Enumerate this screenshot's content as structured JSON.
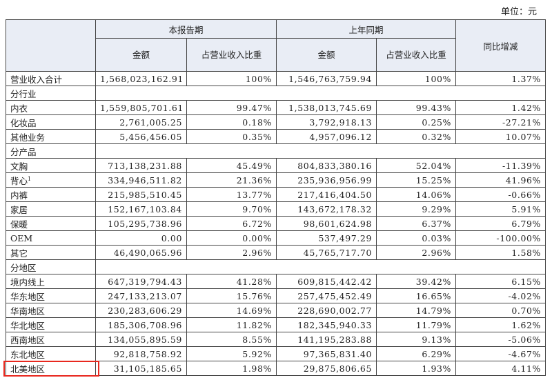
{
  "unit": "单位：元",
  "header": {
    "groups": [
      "本报告期",
      "上年同期",
      "同比增减"
    ],
    "columns": [
      "金额",
      "占营业收入比重",
      "金额",
      "占营业收入比重"
    ]
  },
  "table": {
    "rows": [
      {
        "label": "营业收入合计",
        "values": [
          "1,568,023,162.91",
          "100%",
          "1,546,763,759.94",
          "100%",
          "1.37%"
        ]
      },
      {
        "section": "分行业"
      },
      {
        "label": "内衣",
        "values": [
          "1,559,805,701.61",
          "99.47%",
          "1,538,013,745.69",
          "99.43%",
          "1.42%"
        ]
      },
      {
        "label": "化妆品",
        "values": [
          "2,761,005.25",
          "0.18%",
          "3,792,918.13",
          "0.25%",
          "-27.21%"
        ]
      },
      {
        "label": "其他业务",
        "values": [
          "5,456,456.05",
          "0.35%",
          "4,957,096.12",
          "0.32%",
          "10.07%"
        ]
      },
      {
        "section": "分产品"
      },
      {
        "label": "文胸",
        "values": [
          "713,138,231.88",
          "45.49%",
          "804,833,380.16",
          "52.04%",
          "-11.39%"
        ]
      },
      {
        "label": "背心",
        "note": "1",
        "values": [
          "334,946,511.82",
          "21.36%",
          "235,936,956.99",
          "15.25%",
          "41.96%"
        ]
      },
      {
        "label": "内裤",
        "values": [
          "215,985,510.45",
          "13.77%",
          "217,416,404.50",
          "14.06%",
          "-0.66%"
        ]
      },
      {
        "label": "家居",
        "values": [
          "152,167,103.84",
          "9.70%",
          "143,672,178.32",
          "9.29%",
          "5.91%"
        ]
      },
      {
        "label": "保暖",
        "values": [
          "105,295,738.96",
          "6.72%",
          "98,601,624.98",
          "6.37%",
          "6.79%"
        ]
      },
      {
        "label": "OEM",
        "values": [
          "0.00",
          "0.00%",
          "537,497.29",
          "0.03%",
          "-100.00%"
        ]
      },
      {
        "label": "其它",
        "values": [
          "46,490,065.96",
          "2.96%",
          "45,765,717.70",
          "2.96%",
          "1.58%"
        ]
      },
      {
        "section": "分地区"
      },
      {
        "label": "境内线上",
        "values": [
          "647,319,794.43",
          "41.28%",
          "609,815,442.42",
          "39.42%",
          "6.15%"
        ]
      },
      {
        "label": "华东地区",
        "values": [
          "247,133,213.07",
          "15.76%",
          "257,475,452.49",
          "16.65%",
          "-4.02%"
        ]
      },
      {
        "label": "华南地区",
        "values": [
          "230,283,606.29",
          "14.69%",
          "228,690,002.77",
          "14.79%",
          "0.70%"
        ]
      },
      {
        "label": "华北地区",
        "values": [
          "185,306,708.96",
          "11.82%",
          "182,345,940.33",
          "11.79%",
          "1.62%"
        ]
      },
      {
        "label": "西南地区",
        "values": [
          "134,055,895.59",
          "8.55%",
          "141,195,283.88",
          "9.13%",
          "-5.06%"
        ]
      },
      {
        "label": "东北地区",
        "values": [
          "92,818,758.92",
          "5.92%",
          "97,365,831.40",
          "6.29%",
          "-4.67%"
        ]
      },
      {
        "label": "北美地区",
        "values": [
          "31,105,185.65",
          "1.98%",
          "29,875,806.65",
          "1.93%",
          "4.11%"
        ]
      }
    ]
  }
}
